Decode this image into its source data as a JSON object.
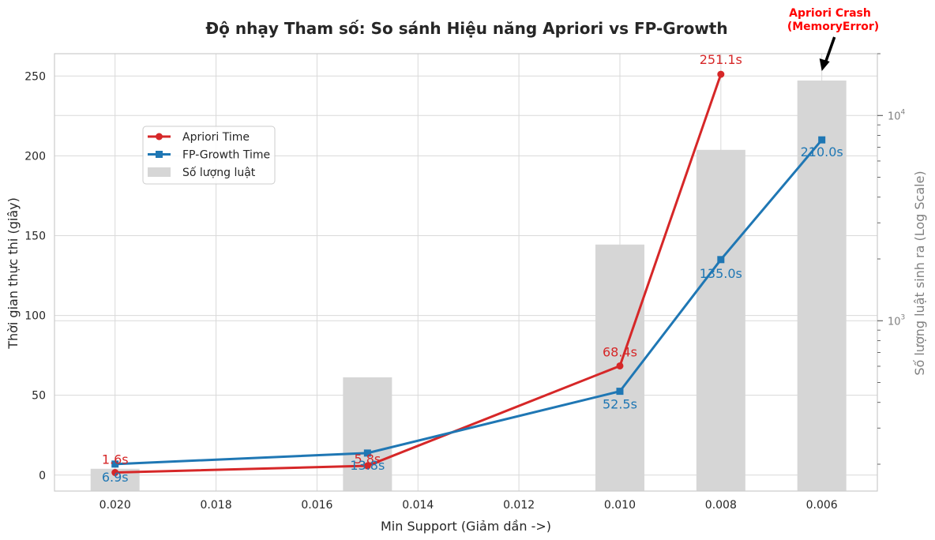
{
  "chart_data": {
    "type": "line",
    "title": "Độ nhạy Tham số: So sánh Hiệu năng Apriori vs FP-Growth",
    "xlabel": "Min Support (Giảm dần ->)",
    "ylabel": "Thời gian thực thi (giây)",
    "ylabel_right": "Số lượng luật sinh ra (Log Scale)",
    "x_ticks": [
      "0.020",
      "0.018",
      "0.016",
      "0.014",
      "0.012",
      "0.010",
      "0.008",
      "0.006"
    ],
    "x_tick_values": [
      0.02,
      0.018,
      0.016,
      0.014,
      0.012,
      0.01,
      0.008,
      0.006
    ],
    "xlim": [
      0.0212,
      0.0049
    ],
    "y_ticks": [
      "0",
      "50",
      "100",
      "150",
      "200",
      "250"
    ],
    "y_tick_values": [
      0,
      50,
      100,
      150,
      200,
      250
    ],
    "ylim": [
      -10,
      264
    ],
    "y2_scale": "log",
    "y2_ticks": [
      {
        "base": "10",
        "exp": "3",
        "value": 1000
      },
      {
        "base": "10",
        "exp": "4",
        "value": 10000
      }
    ],
    "y2lim": [
      148,
      20000
    ],
    "grid": true,
    "legend_position": "upper-left",
    "x": [
      0.02,
      0.015,
      0.01,
      0.008,
      0.006
    ],
    "series": [
      {
        "name": "Apriori Time",
        "kind": "line",
        "marker": "circle",
        "color": "#d62728",
        "values": [
          1.6,
          5.8,
          68.4,
          251.1,
          null
        ],
        "labels": [
          "1.6s",
          "5.8s",
          "68.4s",
          "251.1s",
          null
        ]
      },
      {
        "name": "FP-Growth Time",
        "kind": "line",
        "marker": "square",
        "color": "#1f77b4",
        "values": [
          6.9,
          13.8,
          52.5,
          135.0,
          210.0
        ],
        "labels": [
          "6.9s",
          "13.8s",
          "52.5s",
          "135.0s",
          "210.0s"
        ]
      },
      {
        "name": "Số lượng luật",
        "kind": "bar",
        "axis": "right",
        "color": "#d6d6d6",
        "values": [
          190,
          530,
          2350,
          6800,
          14800
        ]
      }
    ],
    "annotation": {
      "line1": "Apriori Crash",
      "line2": "(MemoryError)",
      "x": 0.006,
      "color": "#ff0000"
    }
  }
}
